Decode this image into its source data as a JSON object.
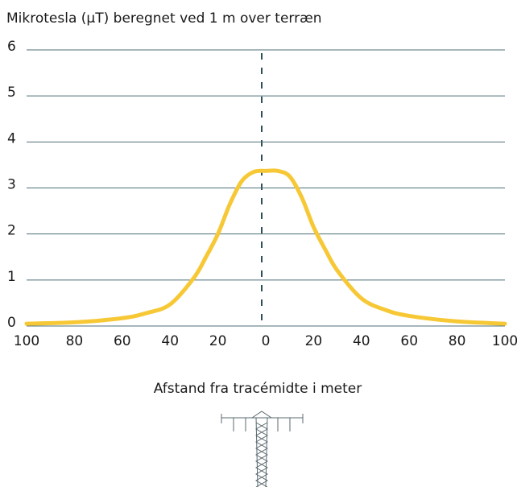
{
  "chart_data": {
    "type": "line",
    "title": "Mikrotesla (µT) beregnet ved 1 m over terræn",
    "x_label": "Afstand fra tracémidte i meter",
    "x": [
      -100,
      -80,
      -60,
      -50,
      -40,
      -30,
      -25,
      -20,
      -15,
      -10,
      -5,
      0,
      5,
      10,
      15,
      20,
      25,
      30,
      40,
      50,
      60,
      80,
      100
    ],
    "series": [
      {
        "color": "#f7c836",
        "values": [
          0.05,
          0.08,
          0.17,
          0.28,
          0.47,
          1.05,
          1.5,
          2.0,
          2.65,
          3.15,
          3.35,
          3.37,
          3.37,
          3.25,
          2.8,
          2.15,
          1.65,
          1.2,
          0.6,
          0.35,
          0.22,
          0.1,
          0.05
        ]
      }
    ],
    "xlim": [
      -100,
      100
    ],
    "xticks": [
      {
        "value": -100,
        "label": "100"
      },
      {
        "value": -80,
        "label": "80"
      },
      {
        "value": -60,
        "label": "60"
      },
      {
        "value": -40,
        "label": "40"
      },
      {
        "value": -20,
        "label": "20"
      },
      0,
      20,
      40,
      60,
      80,
      100
    ],
    "ylim": [
      0,
      6
    ],
    "yticks": [
      0,
      1,
      2,
      3,
      4,
      5,
      6
    ],
    "grid": true
  }
}
